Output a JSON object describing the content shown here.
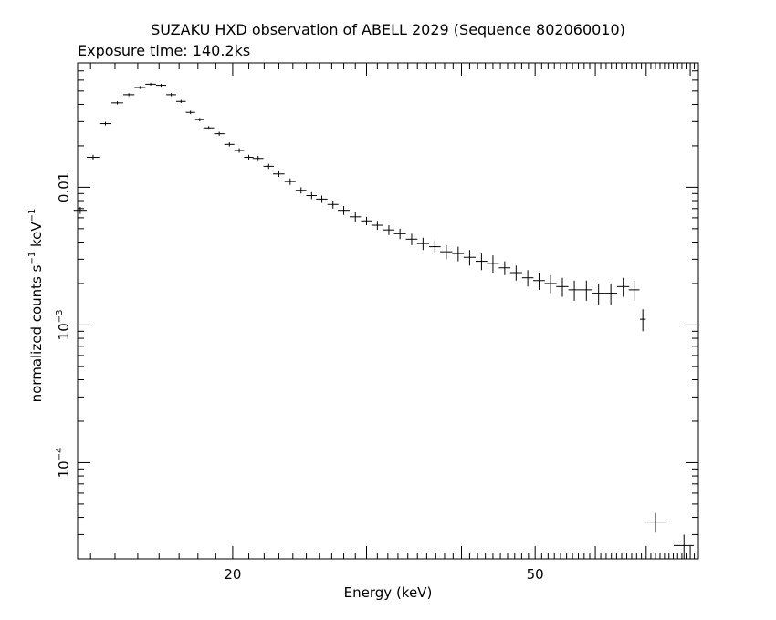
{
  "chart_data": {
    "type": "scatter",
    "title": "SUZAKU HXD observation of ABELL 2029 (Sequence 802060010)",
    "subtitle": "Exposure time: 140.2ks",
    "xlabel": "Energy (keV)",
    "ylabel": {
      "prefix": "normalized counts s",
      "sup1": "−1",
      "mid": " keV",
      "sup2": "−1"
    },
    "x_scale": "log",
    "y_scale": "log",
    "xlim": [
      12.5,
      82
    ],
    "ylim": [
      2e-05,
      0.08
    ],
    "x_tick_labels": [
      {
        "value": 20,
        "label": "20"
      },
      {
        "value": 50,
        "label": "50"
      }
    ],
    "y_tick_labels": [
      {
        "value": 0.01,
        "label": "0.01"
      },
      {
        "value": 0.001,
        "base": "10",
        "exp": "−3"
      },
      {
        "value": 0.0001,
        "base": "10",
        "exp": "−4"
      }
    ],
    "grid": false,
    "legend": "none",
    "series": [
      {
        "x": [
          12.6,
          13.1,
          13.6,
          14.1,
          14.6,
          15.1,
          15.6,
          16.1,
          16.6,
          17.1,
          17.6,
          18.1,
          18.6,
          19.2,
          19.8,
          20.4,
          21.0,
          21.6,
          22.3,
          23.0,
          23.8,
          24.6,
          25.4,
          26.2,
          27.1,
          28.0,
          29.0,
          30.0,
          31.0,
          32.1,
          33.2,
          34.4,
          35.6,
          36.9,
          38.2,
          39.6,
          41.0,
          42.5,
          44.0,
          45.6,
          47.2,
          48.9,
          50.6,
          52.4,
          54.3,
          56.3,
          58.4,
          60.6,
          62.9,
          65.3,
          67.5,
          69.3
        ],
        "y": [
          0.0068,
          0.0165,
          0.029,
          0.041,
          0.047,
          0.053,
          0.056,
          0.055,
          0.047,
          0.042,
          0.035,
          0.031,
          0.027,
          0.0245,
          0.0205,
          0.0185,
          0.0165,
          0.0162,
          0.0142,
          0.0125,
          0.011,
          0.0095,
          0.0087,
          0.0082,
          0.0075,
          0.0068,
          0.0061,
          0.0057,
          0.0053,
          0.0049,
          0.0046,
          0.0042,
          0.0039,
          0.0037,
          0.0034,
          0.0033,
          0.0031,
          0.0029,
          0.0028,
          0.0026,
          0.0024,
          0.0022,
          0.0021,
          0.002,
          0.0019,
          0.0018,
          0.0018,
          0.0017,
          0.0017,
          0.0019,
          0.0018,
          0.0011
        ],
        "xerr": [
          0.25,
          0.25,
          0.25,
          0.25,
          0.25,
          0.25,
          0.25,
          0.25,
          0.25,
          0.25,
          0.25,
          0.25,
          0.3,
          0.3,
          0.3,
          0.3,
          0.3,
          0.35,
          0.35,
          0.4,
          0.4,
          0.4,
          0.4,
          0.45,
          0.45,
          0.5,
          0.5,
          0.5,
          0.55,
          0.55,
          0.6,
          0.6,
          0.65,
          0.65,
          0.7,
          0.7,
          0.75,
          0.75,
          0.8,
          0.8,
          0.85,
          0.85,
          0.9,
          0.95,
          1.0,
          1.0,
          1.1,
          1.1,
          1.2,
          1.2,
          1.1,
          0.6
        ],
        "yerr": [
          0.0004,
          0.0007,
          0.0009,
          0.0011,
          0.0012,
          0.0013,
          0.0013,
          0.0013,
          0.0012,
          0.0011,
          0.001,
          0.0009,
          0.0008,
          0.0008,
          0.0007,
          0.0007,
          0.0007,
          0.0007,
          0.0006,
          0.0006,
          0.0006,
          0.0005,
          0.0005,
          0.0005,
          0.0005,
          0.0005,
          0.0005,
          0.0004,
          0.0004,
          0.0004,
          0.0004,
          0.0004,
          0.0004,
          0.0004,
          0.0004,
          0.0004,
          0.0004,
          0.0004,
          0.0004,
          0.0003,
          0.0003,
          0.0003,
          0.0003,
          0.0003,
          0.0003,
          0.0003,
          0.0003,
          0.0003,
          0.0003,
          0.0003,
          0.0003,
          0.0002
        ]
      },
      {
        "x": [
          72.0,
          78.5
        ],
        "y": [
          3.7e-05,
          2.5e-05
        ],
        "xerr": [
          2.2,
          2.4
        ],
        "yerr": [
          6e-06,
          5e-06
        ]
      }
    ]
  }
}
